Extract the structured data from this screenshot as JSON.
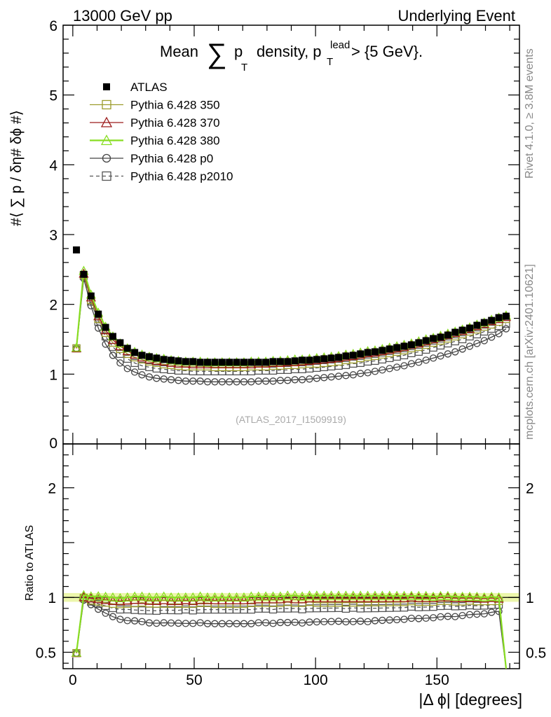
{
  "header": {
    "left": "13000 GeV pp",
    "right": "Underlying Event",
    "plot_title_pre": "Mean",
    "plot_title_mid": "p",
    "plot_title_sub": "T",
    "plot_title_post": "density, p",
    "plot_title_sup": "lead",
    "plot_title_sub2": "T",
    "plot_title_end": "> {5 GeV}."
  },
  "side_labels": {
    "rivet": "Rivet 4.1.0, ≥ 3.8M events",
    "mcplots": "mcplots.cern.ch [arXiv:2401.10621]"
  },
  "watermark": "(ATLAS_2017_I1509919)",
  "y_label_main": "#⟨ ∑ p  / δη# δϕ #⟩",
  "y_label_main_sub": "T",
  "y_label_ratio": "Ratio to ATLAS",
  "x_label": "|Δ ϕ| [degrees]",
  "legend": [
    {
      "label": "ATLAS",
      "color": "#000000",
      "marker": "filled-square",
      "dashed": false
    },
    {
      "label": "Pythia 6.428 350",
      "color": "#9c9c2c",
      "marker": "open-square",
      "dashed": false
    },
    {
      "label": "Pythia 6.428 370",
      "color": "#9c1c1c",
      "marker": "open-triangle",
      "dashed": false
    },
    {
      "label": "Pythia 6.428 380",
      "color": "#88dd22",
      "marker": "open-triangle",
      "dashed": false
    },
    {
      "label": "Pythia 6.428 p0",
      "color": "#444444",
      "marker": "open-circle",
      "dashed": false
    },
    {
      "label": "Pythia 6.428 p2010",
      "color": "#555555",
      "marker": "open-square",
      "dashed": true
    }
  ],
  "chart_data": {
    "type": "line",
    "xlabel": "|Δ ϕ| [degrees]",
    "ylabel": "#⟨ ∑ pT / δη# δϕ #⟩",
    "xlim": [
      -4,
      184
    ],
    "ylim": [
      0,
      6
    ],
    "ratio_ylim": [
      0.35,
      2.4
    ],
    "x_ticks": [
      0,
      50,
      100,
      150
    ],
    "y_ticks": [
      1,
      2,
      3,
      4,
      5,
      6
    ],
    "y_tick_labels": [
      "1",
      "2",
      "3",
      "4",
      "5",
      "6"
    ],
    "y_zero_label": "0",
    "ratio_ticks": [
      0.5,
      1,
      2
    ],
    "ratio_tick_labels": [
      "0.5",
      "1",
      "2"
    ],
    "x": [
      1.5,
      4.5,
      7.5,
      10.5,
      13.5,
      16.5,
      19.5,
      22.5,
      25.5,
      28.5,
      31.5,
      34.5,
      37.5,
      40.5,
      43.5,
      46.5,
      49.5,
      52.5,
      55.5,
      58.5,
      61.5,
      64.5,
      67.5,
      70.5,
      73.5,
      76.5,
      79.5,
      82.5,
      85.5,
      88.5,
      91.5,
      94.5,
      97.5,
      100.5,
      103.5,
      106.5,
      109.5,
      112.5,
      115.5,
      118.5,
      121.5,
      124.5,
      127.5,
      130.5,
      133.5,
      136.5,
      139.5,
      142.5,
      145.5,
      148.5,
      151.5,
      154.5,
      157.5,
      160.5,
      163.5,
      166.5,
      169.5,
      172.5,
      175.5,
      178.5
    ],
    "series": [
      {
        "name": "ATLAS",
        "values": [
          2.78,
          2.43,
          2.12,
          1.86,
          1.67,
          1.54,
          1.45,
          1.37,
          1.31,
          1.27,
          1.25,
          1.23,
          1.21,
          1.2,
          1.19,
          1.18,
          1.18,
          1.17,
          1.17,
          1.17,
          1.17,
          1.17,
          1.17,
          1.17,
          1.17,
          1.17,
          1.17,
          1.18,
          1.18,
          1.18,
          1.19,
          1.2,
          1.2,
          1.21,
          1.22,
          1.23,
          1.24,
          1.26,
          1.27,
          1.29,
          1.31,
          1.32,
          1.34,
          1.36,
          1.38,
          1.4,
          1.42,
          1.45,
          1.48,
          1.51,
          1.53,
          1.56,
          1.6,
          1.63,
          1.66,
          1.7,
          1.74,
          1.77,
          1.81,
          1.83
        ]
      },
      {
        "name": "Pythia 6.428 350",
        "values": [
          1.37,
          2.42,
          2.06,
          1.79,
          1.59,
          1.45,
          1.36,
          1.29,
          1.24,
          1.21,
          1.18,
          1.16,
          1.14,
          1.13,
          1.12,
          1.11,
          1.11,
          1.11,
          1.11,
          1.1,
          1.1,
          1.1,
          1.1,
          1.1,
          1.11,
          1.11,
          1.11,
          1.12,
          1.12,
          1.13,
          1.13,
          1.14,
          1.15,
          1.15,
          1.16,
          1.17,
          1.18,
          1.2,
          1.21,
          1.23,
          1.25,
          1.26,
          1.28,
          1.3,
          1.32,
          1.34,
          1.37,
          1.39,
          1.42,
          1.45,
          1.48,
          1.51,
          1.54,
          1.57,
          1.61,
          1.64,
          1.68,
          1.71,
          1.75,
          1.79
        ]
      },
      {
        "name": "Pythia 6.428 370",
        "values": [
          1.37,
          2.44,
          2.1,
          1.83,
          1.63,
          1.49,
          1.4,
          1.33,
          1.28,
          1.24,
          1.21,
          1.19,
          1.18,
          1.16,
          1.15,
          1.15,
          1.14,
          1.14,
          1.14,
          1.14,
          1.14,
          1.14,
          1.14,
          1.14,
          1.14,
          1.15,
          1.15,
          1.16,
          1.16,
          1.17,
          1.17,
          1.18,
          1.19,
          1.2,
          1.21,
          1.22,
          1.23,
          1.25,
          1.26,
          1.28,
          1.3,
          1.31,
          1.33,
          1.35,
          1.37,
          1.39,
          1.42,
          1.44,
          1.47,
          1.5,
          1.53,
          1.56,
          1.59,
          1.62,
          1.65,
          1.69,
          1.72,
          1.76,
          1.79,
          1.82
        ]
      },
      {
        "name": "Pythia 6.428 380",
        "values": [
          1.38,
          2.48,
          2.14,
          1.88,
          1.68,
          1.54,
          1.44,
          1.37,
          1.32,
          1.28,
          1.25,
          1.23,
          1.22,
          1.2,
          1.19,
          1.18,
          1.18,
          1.18,
          1.17,
          1.17,
          1.17,
          1.17,
          1.17,
          1.17,
          1.18,
          1.18,
          1.18,
          1.19,
          1.19,
          1.2,
          1.21,
          1.21,
          1.22,
          1.23,
          1.24,
          1.25,
          1.26,
          1.28,
          1.29,
          1.31,
          1.33,
          1.34,
          1.36,
          1.38,
          1.4,
          1.42,
          1.44,
          1.47,
          1.5,
          1.52,
          1.55,
          1.58,
          1.61,
          1.64,
          1.67,
          1.71,
          1.74,
          1.78,
          1.81,
          1.84
        ]
      },
      {
        "name": "Pythia 6.428 p0",
        "values": [
          1.37,
          2.37,
          1.98,
          1.66,
          1.43,
          1.27,
          1.16,
          1.08,
          1.03,
          0.99,
          0.96,
          0.94,
          0.93,
          0.92,
          0.91,
          0.9,
          0.9,
          0.9,
          0.89,
          0.89,
          0.89,
          0.89,
          0.89,
          0.89,
          0.89,
          0.9,
          0.9,
          0.9,
          0.91,
          0.91,
          0.92,
          0.92,
          0.93,
          0.94,
          0.95,
          0.96,
          0.97,
          0.98,
          0.99,
          1.01,
          1.02,
          1.04,
          1.06,
          1.08,
          1.1,
          1.12,
          1.15,
          1.17,
          1.2,
          1.23,
          1.26,
          1.29,
          1.32,
          1.36,
          1.4,
          1.44,
          1.48,
          1.53,
          1.58,
          1.65
        ]
      },
      {
        "name": "Pythia 6.428 p2010",
        "values": [
          1.37,
          2.41,
          2.04,
          1.75,
          1.54,
          1.39,
          1.29,
          1.22,
          1.16,
          1.12,
          1.1,
          1.08,
          1.07,
          1.06,
          1.05,
          1.05,
          1.04,
          1.04,
          1.04,
          1.04,
          1.04,
          1.04,
          1.04,
          1.04,
          1.04,
          1.05,
          1.05,
          1.05,
          1.06,
          1.06,
          1.07,
          1.07,
          1.08,
          1.09,
          1.1,
          1.11,
          1.12,
          1.13,
          1.15,
          1.16,
          1.18,
          1.19,
          1.21,
          1.23,
          1.25,
          1.27,
          1.3,
          1.32,
          1.35,
          1.38,
          1.41,
          1.44,
          1.47,
          1.5,
          1.54,
          1.57,
          1.61,
          1.65,
          1.69,
          1.72
        ]
      }
    ]
  }
}
